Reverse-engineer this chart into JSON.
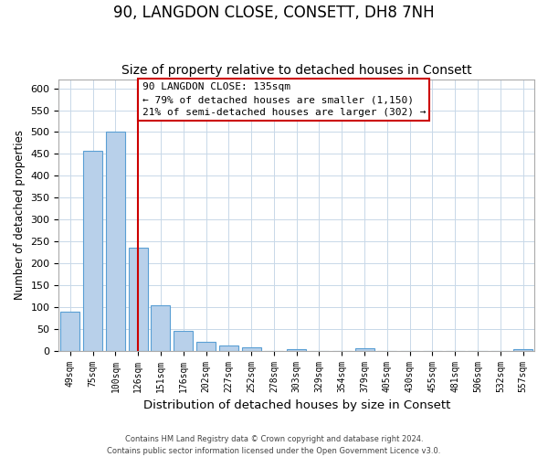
{
  "title": "90, LANGDON CLOSE, CONSETT, DH8 7NH",
  "subtitle": "Size of property relative to detached houses in Consett",
  "xlabel": "Distribution of detached houses by size in Consett",
  "ylabel": "Number of detached properties",
  "bar_labels": [
    "49sqm",
    "75sqm",
    "100sqm",
    "126sqm",
    "151sqm",
    "176sqm",
    "202sqm",
    "227sqm",
    "252sqm",
    "278sqm",
    "303sqm",
    "329sqm",
    "354sqm",
    "379sqm",
    "405sqm",
    "430sqm",
    "455sqm",
    "481sqm",
    "506sqm",
    "532sqm",
    "557sqm"
  ],
  "bar_values": [
    90,
    458,
    500,
    236,
    104,
    46,
    20,
    12,
    8,
    0,
    4,
    0,
    0,
    5,
    0,
    0,
    0,
    0,
    0,
    0,
    3
  ],
  "bar_color": "#b8d0ea",
  "bar_edge_color": "#5a9fd4",
  "vline_x": 3,
  "vline_color": "#cc0000",
  "ylim": [
    0,
    620
  ],
  "yticks": [
    0,
    50,
    100,
    150,
    200,
    250,
    300,
    350,
    400,
    450,
    500,
    550,
    600
  ],
  "annotation_title": "90 LANGDON CLOSE: 135sqm",
  "annotation_line1": "← 79% of detached houses are smaller (1,150)",
  "annotation_line2": "21% of semi-detached houses are larger (302) →",
  "annotation_box_color": "#ffffff",
  "annotation_box_edge": "#cc0000",
  "footer_line1": "Contains HM Land Registry data © Crown copyright and database right 2024.",
  "footer_line2": "Contains public sector information licensed under the Open Government Licence v3.0.",
  "background_color": "#ffffff",
  "grid_color": "#c8d8e8",
  "title_fontsize": 12,
  "subtitle_fontsize": 10
}
